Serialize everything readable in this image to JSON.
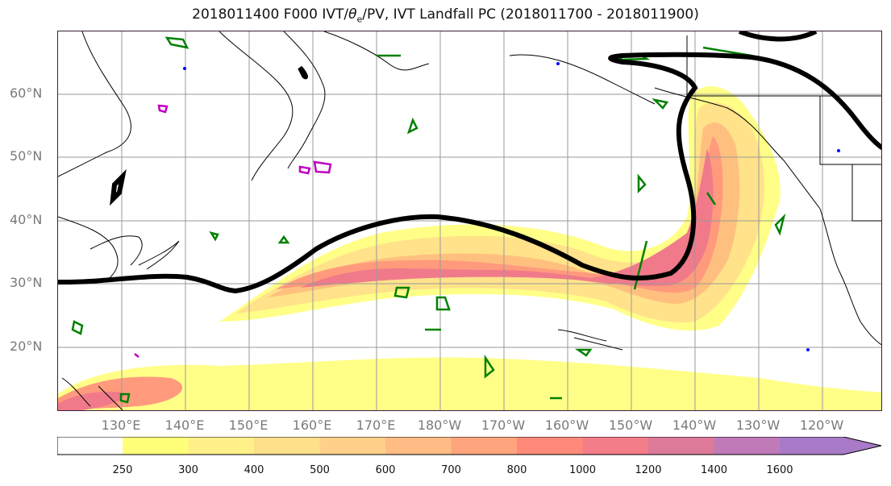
{
  "title": {
    "prefix": "2018011400 F000 IVT/",
    "theta_symbol": "θ",
    "theta_sub": "e",
    "suffix": "/PV, IVT Landfall PC (2018011700 - 2018011900)"
  },
  "map": {
    "lat_labels": [
      "60°N",
      "50°N",
      "40°N",
      "30°N",
      "20°N"
    ],
    "lon_labels": [
      "130°E",
      "140°E",
      "150°E",
      "160°E",
      "170°E",
      "180°W",
      "170°W",
      "160°W",
      "150°W",
      "140°W",
      "130°W",
      "120°W"
    ],
    "ivt_contour_line_color": "#000000",
    "pv_contour_color": "#008000",
    "theta_contour_color": "#c000c0",
    "minor_contour_color": "#0000ff"
  },
  "colorbar": {
    "ticks": [
      "250",
      "300",
      "400",
      "500",
      "600",
      "700",
      "800",
      "1000",
      "1200",
      "1400",
      "1600"
    ],
    "colors": [
      "#ffff7a",
      "#fff08a",
      "#ffe08a",
      "#ffd08a",
      "#ffbd85",
      "#ffa57d",
      "#ff8a7a",
      "#f47d8a",
      "#dd7a9a",
      "#c07ab8",
      "#a87ac8",
      "#a87ac8"
    ],
    "extend": "max"
  }
}
